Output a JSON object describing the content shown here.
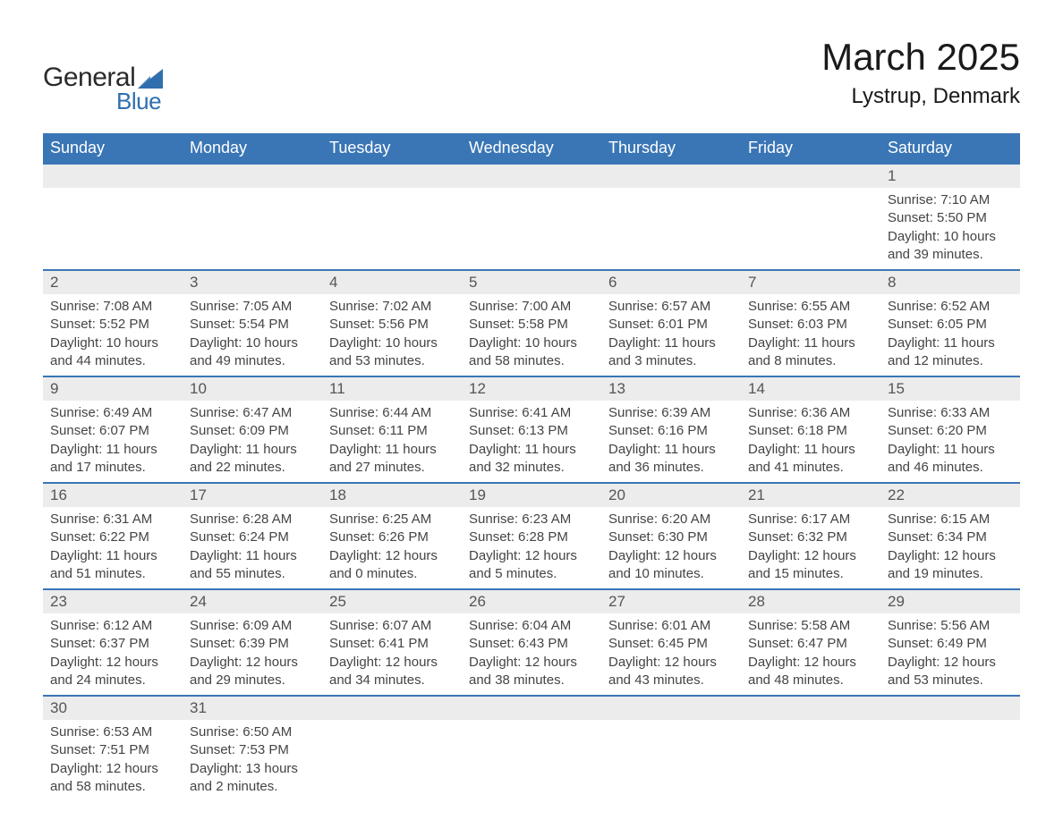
{
  "logo": {
    "text_general": "General",
    "text_blue": "Blue",
    "sail_color": "#2f6fae"
  },
  "title": {
    "month": "March 2025",
    "location": "Lystrup, Denmark"
  },
  "colors": {
    "header_bg": "#3a76b5",
    "header_text": "#ffffff",
    "day_bar_bg": "#ececec",
    "day_bar_text": "#555555",
    "content_text": "#444444",
    "border": "#3a76b5"
  },
  "day_headers": [
    "Sunday",
    "Monday",
    "Tuesday",
    "Wednesday",
    "Thursday",
    "Friday",
    "Saturday"
  ],
  "weeks": [
    [
      null,
      null,
      null,
      null,
      null,
      null,
      {
        "num": "1",
        "sunrise": "Sunrise: 7:10 AM",
        "sunset": "Sunset: 5:50 PM",
        "daylight1": "Daylight: 10 hours",
        "daylight2": "and 39 minutes."
      }
    ],
    [
      {
        "num": "2",
        "sunrise": "Sunrise: 7:08 AM",
        "sunset": "Sunset: 5:52 PM",
        "daylight1": "Daylight: 10 hours",
        "daylight2": "and 44 minutes."
      },
      {
        "num": "3",
        "sunrise": "Sunrise: 7:05 AM",
        "sunset": "Sunset: 5:54 PM",
        "daylight1": "Daylight: 10 hours",
        "daylight2": "and 49 minutes."
      },
      {
        "num": "4",
        "sunrise": "Sunrise: 7:02 AM",
        "sunset": "Sunset: 5:56 PM",
        "daylight1": "Daylight: 10 hours",
        "daylight2": "and 53 minutes."
      },
      {
        "num": "5",
        "sunrise": "Sunrise: 7:00 AM",
        "sunset": "Sunset: 5:58 PM",
        "daylight1": "Daylight: 10 hours",
        "daylight2": "and 58 minutes."
      },
      {
        "num": "6",
        "sunrise": "Sunrise: 6:57 AM",
        "sunset": "Sunset: 6:01 PM",
        "daylight1": "Daylight: 11 hours",
        "daylight2": "and 3 minutes."
      },
      {
        "num": "7",
        "sunrise": "Sunrise: 6:55 AM",
        "sunset": "Sunset: 6:03 PM",
        "daylight1": "Daylight: 11 hours",
        "daylight2": "and 8 minutes."
      },
      {
        "num": "8",
        "sunrise": "Sunrise: 6:52 AM",
        "sunset": "Sunset: 6:05 PM",
        "daylight1": "Daylight: 11 hours",
        "daylight2": "and 12 minutes."
      }
    ],
    [
      {
        "num": "9",
        "sunrise": "Sunrise: 6:49 AM",
        "sunset": "Sunset: 6:07 PM",
        "daylight1": "Daylight: 11 hours",
        "daylight2": "and 17 minutes."
      },
      {
        "num": "10",
        "sunrise": "Sunrise: 6:47 AM",
        "sunset": "Sunset: 6:09 PM",
        "daylight1": "Daylight: 11 hours",
        "daylight2": "and 22 minutes."
      },
      {
        "num": "11",
        "sunrise": "Sunrise: 6:44 AM",
        "sunset": "Sunset: 6:11 PM",
        "daylight1": "Daylight: 11 hours",
        "daylight2": "and 27 minutes."
      },
      {
        "num": "12",
        "sunrise": "Sunrise: 6:41 AM",
        "sunset": "Sunset: 6:13 PM",
        "daylight1": "Daylight: 11 hours",
        "daylight2": "and 32 minutes."
      },
      {
        "num": "13",
        "sunrise": "Sunrise: 6:39 AM",
        "sunset": "Sunset: 6:16 PM",
        "daylight1": "Daylight: 11 hours",
        "daylight2": "and 36 minutes."
      },
      {
        "num": "14",
        "sunrise": "Sunrise: 6:36 AM",
        "sunset": "Sunset: 6:18 PM",
        "daylight1": "Daylight: 11 hours",
        "daylight2": "and 41 minutes."
      },
      {
        "num": "15",
        "sunrise": "Sunrise: 6:33 AM",
        "sunset": "Sunset: 6:20 PM",
        "daylight1": "Daylight: 11 hours",
        "daylight2": "and 46 minutes."
      }
    ],
    [
      {
        "num": "16",
        "sunrise": "Sunrise: 6:31 AM",
        "sunset": "Sunset: 6:22 PM",
        "daylight1": "Daylight: 11 hours",
        "daylight2": "and 51 minutes."
      },
      {
        "num": "17",
        "sunrise": "Sunrise: 6:28 AM",
        "sunset": "Sunset: 6:24 PM",
        "daylight1": "Daylight: 11 hours",
        "daylight2": "and 55 minutes."
      },
      {
        "num": "18",
        "sunrise": "Sunrise: 6:25 AM",
        "sunset": "Sunset: 6:26 PM",
        "daylight1": "Daylight: 12 hours",
        "daylight2": "and 0 minutes."
      },
      {
        "num": "19",
        "sunrise": "Sunrise: 6:23 AM",
        "sunset": "Sunset: 6:28 PM",
        "daylight1": "Daylight: 12 hours",
        "daylight2": "and 5 minutes."
      },
      {
        "num": "20",
        "sunrise": "Sunrise: 6:20 AM",
        "sunset": "Sunset: 6:30 PM",
        "daylight1": "Daylight: 12 hours",
        "daylight2": "and 10 minutes."
      },
      {
        "num": "21",
        "sunrise": "Sunrise: 6:17 AM",
        "sunset": "Sunset: 6:32 PM",
        "daylight1": "Daylight: 12 hours",
        "daylight2": "and 15 minutes."
      },
      {
        "num": "22",
        "sunrise": "Sunrise: 6:15 AM",
        "sunset": "Sunset: 6:34 PM",
        "daylight1": "Daylight: 12 hours",
        "daylight2": "and 19 minutes."
      }
    ],
    [
      {
        "num": "23",
        "sunrise": "Sunrise: 6:12 AM",
        "sunset": "Sunset: 6:37 PM",
        "daylight1": "Daylight: 12 hours",
        "daylight2": "and 24 minutes."
      },
      {
        "num": "24",
        "sunrise": "Sunrise: 6:09 AM",
        "sunset": "Sunset: 6:39 PM",
        "daylight1": "Daylight: 12 hours",
        "daylight2": "and 29 minutes."
      },
      {
        "num": "25",
        "sunrise": "Sunrise: 6:07 AM",
        "sunset": "Sunset: 6:41 PM",
        "daylight1": "Daylight: 12 hours",
        "daylight2": "and 34 minutes."
      },
      {
        "num": "26",
        "sunrise": "Sunrise: 6:04 AM",
        "sunset": "Sunset: 6:43 PM",
        "daylight1": "Daylight: 12 hours",
        "daylight2": "and 38 minutes."
      },
      {
        "num": "27",
        "sunrise": "Sunrise: 6:01 AM",
        "sunset": "Sunset: 6:45 PM",
        "daylight1": "Daylight: 12 hours",
        "daylight2": "and 43 minutes."
      },
      {
        "num": "28",
        "sunrise": "Sunrise: 5:58 AM",
        "sunset": "Sunset: 6:47 PM",
        "daylight1": "Daylight: 12 hours",
        "daylight2": "and 48 minutes."
      },
      {
        "num": "29",
        "sunrise": "Sunrise: 5:56 AM",
        "sunset": "Sunset: 6:49 PM",
        "daylight1": "Daylight: 12 hours",
        "daylight2": "and 53 minutes."
      }
    ],
    [
      {
        "num": "30",
        "sunrise": "Sunrise: 6:53 AM",
        "sunset": "Sunset: 7:51 PM",
        "daylight1": "Daylight: 12 hours",
        "daylight2": "and 58 minutes."
      },
      {
        "num": "31",
        "sunrise": "Sunrise: 6:50 AM",
        "sunset": "Sunset: 7:53 PM",
        "daylight1": "Daylight: 13 hours",
        "daylight2": "and 2 minutes."
      },
      null,
      null,
      null,
      null,
      null
    ]
  ]
}
